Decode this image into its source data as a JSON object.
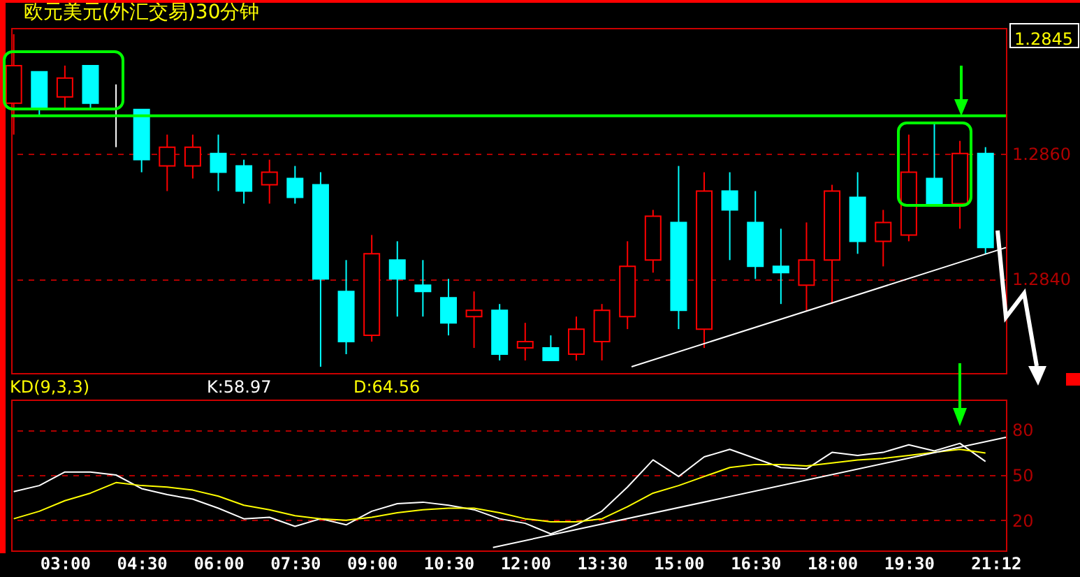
{
  "chart_data": [
    {
      "type": "candlestick",
      "title": "欧元美元(外汇交易)30分钟",
      "x": [
        2,
        2.5,
        3,
        3.5,
        4,
        4.5,
        5,
        5.5,
        6,
        6.5,
        7,
        7.5,
        8,
        8.5,
        9,
        9.5,
        10,
        10.5,
        11,
        11.5,
        12,
        12.5,
        13,
        13.5,
        14,
        14.5,
        15,
        15.5,
        16,
        16.5,
        17,
        17.5,
        18,
        18.5,
        19,
        19.5,
        20,
        20.5,
        21
      ],
      "ohlc": [
        [
          1.2868,
          1.2879,
          1.2863,
          1.2874
        ],
        [
          1.2873,
          1.2873,
          1.2866,
          1.2867
        ],
        [
          1.2869,
          1.2874,
          1.2867,
          1.2872
        ],
        [
          1.2874,
          1.2874,
          1.2867,
          1.2868
        ],
        [
          1.2866,
          1.2871,
          1.2861,
          1.2866
        ],
        [
          1.2867,
          1.2867,
          1.2857,
          1.2859
        ],
        [
          1.2858,
          1.2863,
          1.2854,
          1.2861
        ],
        [
          1.2858,
          1.2863,
          1.2856,
          1.2861
        ],
        [
          1.286,
          1.2863,
          1.2854,
          1.2857
        ],
        [
          1.2858,
          1.2859,
          1.2852,
          1.2854
        ],
        [
          1.2855,
          1.2859,
          1.2852,
          1.2857
        ],
        [
          1.2856,
          1.2858,
          1.2852,
          1.2853
        ],
        [
          1.2855,
          1.2857,
          1.2826,
          1.284
        ],
        [
          1.2838,
          1.2843,
          1.2828,
          1.283
        ],
        [
          1.2831,
          1.2847,
          1.283,
          1.2844
        ],
        [
          1.2843,
          1.2846,
          1.2834,
          1.284
        ],
        [
          1.2839,
          1.2843,
          1.2834,
          1.2838
        ],
        [
          1.2837,
          1.284,
          1.2831,
          1.2833
        ],
        [
          1.2834,
          1.2838,
          1.2829,
          1.2835
        ],
        [
          1.2835,
          1.2836,
          1.2827,
          1.2828
        ],
        [
          1.2829,
          1.2833,
          1.2827,
          1.283
        ],
        [
          1.2829,
          1.2831,
          1.2827,
          1.2827
        ],
        [
          1.2828,
          1.2834,
          1.2827,
          1.2832
        ],
        [
          1.283,
          1.2836,
          1.2827,
          1.2835
        ],
        [
          1.2834,
          1.2846,
          1.2832,
          1.2842
        ],
        [
          1.2843,
          1.2851,
          1.2841,
          1.285
        ],
        [
          1.2849,
          1.2858,
          1.2832,
          1.2835
        ],
        [
          1.2832,
          1.2857,
          1.2829,
          1.2854
        ],
        [
          1.2854,
          1.2857,
          1.2843,
          1.2851
        ],
        [
          1.2849,
          1.2854,
          1.284,
          1.2842
        ],
        [
          1.2842,
          1.2848,
          1.2836,
          1.2841
        ],
        [
          1.2839,
          1.2849,
          1.2835,
          1.2843
        ],
        [
          1.2843,
          1.2855,
          1.2836,
          1.2854
        ],
        [
          1.2853,
          1.2857,
          1.2844,
          1.2846
        ],
        [
          1.2846,
          1.2851,
          1.2842,
          1.2849
        ],
        [
          1.2847,
          1.2863,
          1.2846,
          1.2857
        ],
        [
          1.2856,
          1.2865,
          1.2852,
          1.2852
        ],
        [
          1.2852,
          1.2862,
          1.2848,
          1.286
        ],
        [
          1.286,
          1.2861,
          1.2844,
          1.2845
        ]
      ],
      "colors": [
        "#ff0000",
        "#00ffff",
        "#ff0000",
        "#00ffff",
        "#ffffff",
        "#00ffff",
        "#ff0000",
        "#ff0000",
        "#00ffff",
        "#00ffff",
        "#ff0000",
        "#00ffff",
        "#00ffff",
        "#00ffff",
        "#ff0000",
        "#00ffff",
        "#00ffff",
        "#00ffff",
        "#ff0000",
        "#00ffff",
        "#ff0000",
        "#00ffff",
        "#ff0000",
        "#ff0000",
        "#ff0000",
        "#ff0000",
        "#00ffff",
        "#ff0000",
        "#00ffff",
        "#00ffff",
        "#00ffff",
        "#ff0000",
        "#ff0000",
        "#00ffff",
        "#ff0000",
        "#ff0000",
        "#00ffff",
        "#ff0000",
        "#00ffff"
      ],
      "series": [
        {
          "type": "line",
          "color": "#ffffff",
          "x": [
            14.08,
            21.4
          ],
          "values": [
            1.2826,
            1.2845
          ]
        }
      ],
      "ref_lines": [
        {
          "axis": "y",
          "value": 1.2866,
          "color": "#00ff00"
        }
      ],
      "annotations": [
        "1.2845"
      ],
      "xlim": [
        1.95,
        21.4
      ],
      "ylim": [
        1.2825,
        1.288
      ],
      "yticks": [
        {
          "value": 1.286,
          "label": "1.2860"
        },
        {
          "value": 1.284,
          "label": "1.2840"
        }
      ],
      "tick_labels": "y",
      "grid": "y"
    },
    {
      "type": "line",
      "title": "KD(9,3,3)",
      "x": [
        2,
        2.5,
        3,
        3.5,
        4,
        4.5,
        5,
        5.5,
        6,
        6.5,
        7,
        7.5,
        8,
        8.5,
        9,
        9.5,
        10,
        10.5,
        11,
        11.5,
        12,
        12.5,
        13,
        13.5,
        14,
        14.5,
        15,
        15.5,
        16,
        16.5,
        17,
        17.5,
        18,
        18.5,
        19,
        19.5,
        20,
        20.5,
        21
      ],
      "series": [
        {
          "color": "#ffffff",
          "values": [
            39,
            43,
            52,
            52,
            50,
            41,
            37,
            34,
            28,
            21,
            22,
            16,
            21,
            17,
            26,
            31,
            32,
            30,
            27,
            21,
            18,
            11,
            17,
            26,
            42,
            60,
            49,
            62,
            67,
            61,
            55,
            54,
            65,
            63,
            65,
            70,
            66,
            71,
            58.97
          ]
        },
        {
          "color": "#ffff00",
          "values": [
            21,
            26,
            33,
            38,
            45,
            43,
            42,
            40,
            36,
            30,
            27,
            23,
            21,
            20,
            22,
            25,
            27,
            28,
            28,
            25,
            21,
            19,
            19,
            21,
            29,
            38,
            43,
            49,
            55,
            57,
            57,
            56,
            58,
            60,
            61,
            63,
            65,
            67,
            64.56
          ]
        },
        {
          "color": "#ffffff",
          "x": [
            11.37,
            21.4
          ],
          "values": [
            2,
            75
          ]
        }
      ],
      "annotations": [
        "K:58.97",
        "D:64.56"
      ],
      "xlim": [
        1.95,
        21.4
      ],
      "xticks": [
        {
          "value": 3,
          "label": "03:00"
        },
        {
          "value": 4.5,
          "label": "04:30"
        },
        {
          "value": 6,
          "label": "06:00"
        },
        {
          "value": 7.5,
          "label": "07:30"
        },
        {
          "value": 9,
          "label": "09:00"
        },
        {
          "value": 10.5,
          "label": "10:30"
        },
        {
          "value": 12,
          "label": "12:00"
        },
        {
          "value": 13.5,
          "label": "13:30"
        },
        {
          "value": 15,
          "label": "15:00"
        },
        {
          "value": 16.5,
          "label": "16:30"
        },
        {
          "value": 18,
          "label": "18:00"
        },
        {
          "value": 19.5,
          "label": "19:30"
        },
        {
          "value": 21.2,
          "label": "21:12"
        }
      ],
      "ylim": [
        0,
        100
      ],
      "yticks": [
        80,
        50,
        20
      ],
      "grid": "y"
    }
  ]
}
